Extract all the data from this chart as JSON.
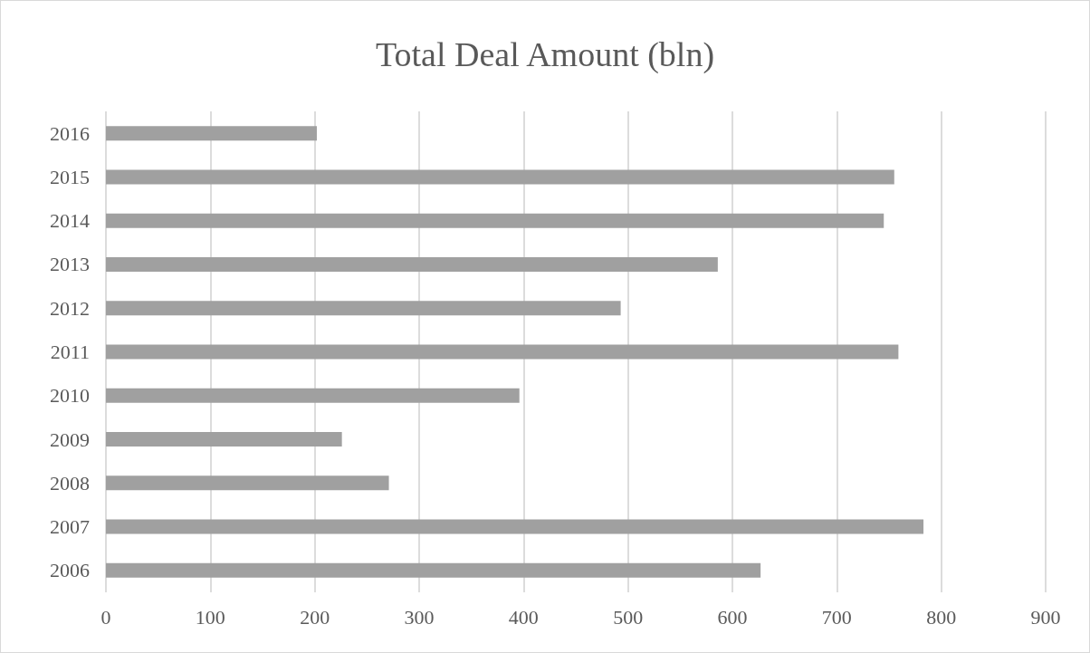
{
  "chart_data": {
    "type": "bar",
    "title": "Total Deal Amount (bln)",
    "orientation": "horizontal",
    "categories": [
      "2016",
      "2015",
      "2014",
      "2013",
      "2012",
      "2011",
      "2010",
      "2009",
      "2008",
      "2007",
      "2006"
    ],
    "values": [
      202,
      755,
      745,
      586,
      493,
      759,
      396,
      226,
      271,
      783,
      627
    ],
    "color": "#a0a0a0",
    "xlim": [
      0,
      900
    ],
    "xticks": [
      0,
      100,
      200,
      300,
      400,
      500,
      600,
      700,
      800,
      900
    ],
    "grid": "x"
  }
}
